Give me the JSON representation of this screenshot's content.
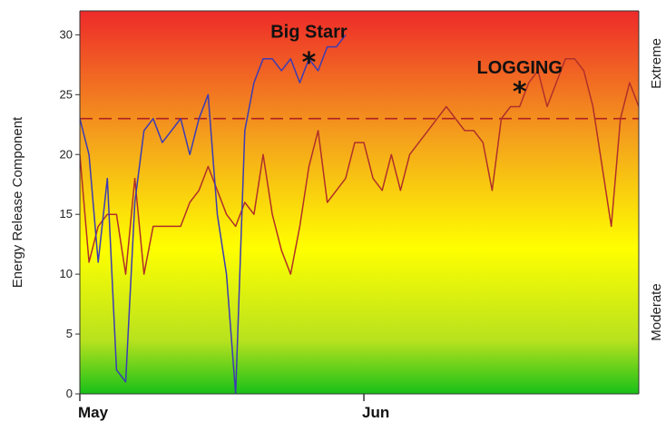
{
  "chart_data": {
    "type": "line",
    "xlabel": "",
    "ylabel": "Energy Release Component",
    "ylim": [
      0,
      32
    ],
    "yticks": [
      0,
      5,
      10,
      15,
      20,
      25,
      30
    ],
    "xlim": [
      0,
      61
    ],
    "month_labels": [
      {
        "label": "May",
        "x": 0
      },
      {
        "label": "Jun",
        "x": 31
      }
    ],
    "right_labels": {
      "top": "Extreme",
      "bottom": "Moderate"
    },
    "threshold": {
      "value": 23,
      "color": "#b02020",
      "style": "dashed"
    },
    "background_gradient": [
      "#ee2a2a",
      "#f4a01c",
      "#ffff00",
      "#b8e21e",
      "#18c018"
    ],
    "grid": false,
    "series": [
      {
        "name": "",
        "color": "#b0302a",
        "x": [
          0,
          1,
          2,
          3,
          4,
          5,
          6,
          7,
          8,
          9,
          10,
          11,
          12,
          13,
          14,
          15,
          16,
          17,
          18,
          19,
          20,
          21,
          22,
          23,
          24,
          25,
          26,
          27,
          28,
          29,
          30,
          31,
          32,
          33,
          34,
          35,
          36,
          37,
          38,
          39,
          40,
          41,
          42,
          43,
          44,
          45,
          46,
          47,
          48,
          49,
          50,
          51,
          52,
          53,
          54,
          55,
          56,
          57,
          58,
          59,
          60,
          61
        ],
        "values": [
          20,
          11,
          14,
          15,
          15,
          10,
          18,
          10,
          14,
          14,
          14,
          14,
          16,
          17,
          19,
          17,
          15,
          14,
          16,
          15,
          20,
          15,
          12,
          10,
          14,
          19,
          22,
          16,
          17,
          18,
          21,
          21,
          18,
          17,
          20,
          17,
          20,
          21,
          22,
          23,
          24,
          23,
          22,
          22,
          21,
          17,
          23,
          24,
          24,
          26,
          27,
          24,
          26,
          28,
          28,
          27,
          24,
          19,
          14,
          23,
          26,
          24
        ]
      },
      {
        "name": "",
        "color": "#3c3cb4",
        "x": [
          0,
          1,
          2,
          3,
          4,
          5,
          6,
          7,
          8,
          9,
          10,
          11,
          12,
          13,
          14,
          15,
          16,
          17,
          18,
          19,
          20,
          21,
          22,
          23,
          24,
          25,
          26,
          27,
          28,
          29
        ],
        "values": [
          23,
          20,
          11,
          18,
          2,
          1,
          16,
          22,
          23,
          21,
          22,
          23,
          20,
          23,
          25,
          15,
          10,
          0,
          22,
          26,
          28,
          28,
          27,
          28,
          26,
          28,
          27,
          29,
          29,
          30
        ]
      }
    ],
    "annotations": [
      {
        "text": "Big Starr",
        "x": 25,
        "y": 30,
        "marker_x": 25,
        "marker_y": 28
      },
      {
        "text": "LOGGING",
        "x": 48,
        "y": 27,
        "marker_x": 48,
        "marker_y": 25.5
      }
    ],
    "marker_glyph": "*"
  }
}
